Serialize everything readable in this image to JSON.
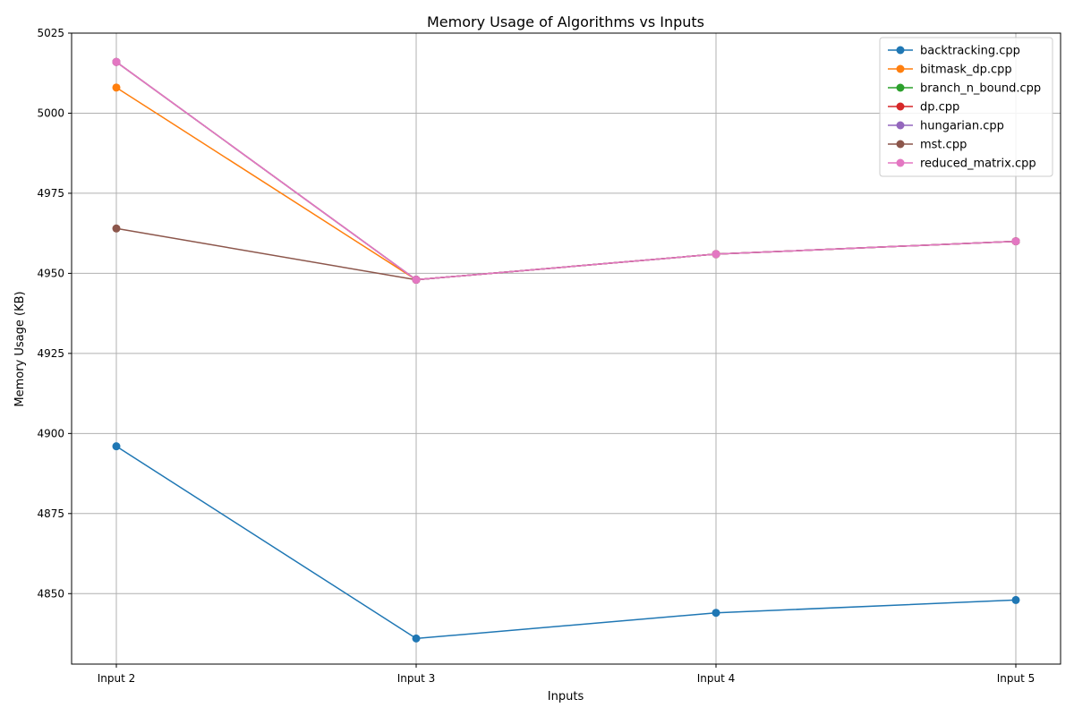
{
  "chart_data": {
    "type": "line",
    "title": "Memory Usage of Algorithms vs Inputs",
    "xlabel": "Inputs",
    "ylabel": "Memory Usage (KB)",
    "categories": [
      "Input 2",
      "Input 3",
      "Input 4",
      "Input 5"
    ],
    "ylim": [
      4828,
      5025
    ],
    "yticks": [
      4850,
      4875,
      4900,
      4925,
      4950,
      4975,
      5000,
      5025
    ],
    "grid": true,
    "legend_position": "top-right",
    "series": [
      {
        "name": "backtracking.cpp",
        "color": "#1f77b4",
        "values": [
          4896,
          4836,
          4844,
          4848
        ]
      },
      {
        "name": "bitmask_dp.cpp",
        "color": "#ff7f0e",
        "values": [
          5008,
          4948,
          4956,
          4960
        ]
      },
      {
        "name": "branch_n_bound.cpp",
        "color": "#2ca02c",
        "values": [
          5016,
          4948,
          4956,
          4960
        ]
      },
      {
        "name": "dp.cpp",
        "color": "#d62728",
        "values": [
          5016,
          4948,
          4956,
          4960
        ]
      },
      {
        "name": "hungarian.cpp",
        "color": "#9467bd",
        "values": [
          5016,
          4948,
          4956,
          4960
        ]
      },
      {
        "name": "mst.cpp",
        "color": "#8c564b",
        "values": [
          4964,
          4948,
          4956,
          4960
        ]
      },
      {
        "name": "reduced_matrix.cpp",
        "color": "#e377c2",
        "values": [
          5016,
          4948,
          4956,
          4960
        ]
      }
    ]
  }
}
